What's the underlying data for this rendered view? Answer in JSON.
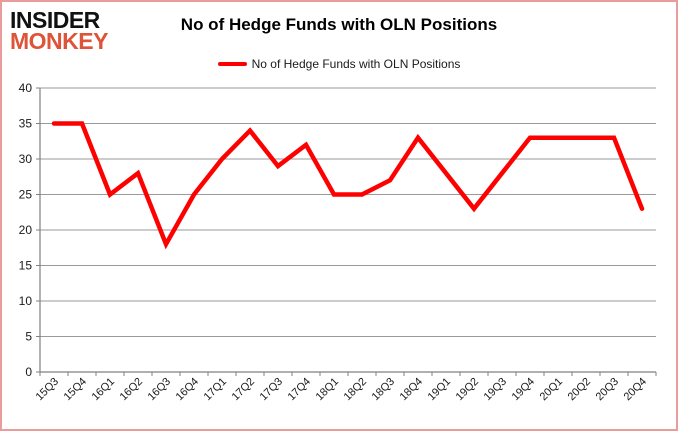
{
  "logo": {
    "line1": "INSIDER",
    "line2": "MONKEY"
  },
  "header": {
    "title": "No of Hedge Funds with OLN Positions"
  },
  "legend": {
    "label": "No of Hedge Funds with OLN Positions"
  },
  "colors": {
    "series": "#ff0000",
    "grid": "#9a9a9a",
    "axis": "#808080",
    "tick_label": "#1a1a1a",
    "frame_border": "#e89c9c",
    "logo_accent": "#dd5438",
    "logo_primary": "#111111"
  },
  "chart_data": {
    "type": "line",
    "title": "No of Hedge Funds with OLN Positions",
    "categories": [
      "15Q3",
      "15Q4",
      "16Q1",
      "16Q2",
      "16Q3",
      "16Q4",
      "17Q1",
      "17Q2",
      "17Q3",
      "17Q4",
      "18Q1",
      "18Q2",
      "18Q3",
      "18Q4",
      "19Q1",
      "19Q2",
      "19Q3",
      "19Q4",
      "20Q1",
      "20Q2",
      "20Q3",
      "20Q4"
    ],
    "series": [
      {
        "name": "No of Hedge Funds with OLN Positions",
        "color": "#ff0000",
        "values": [
          35,
          35,
          25,
          28,
          18,
          25,
          30,
          34,
          29,
          32,
          25,
          25,
          27,
          33,
          28,
          23,
          28,
          33,
          33,
          33,
          33,
          23
        ]
      }
    ],
    "xlabel": "",
    "ylabel": "",
    "ylim": [
      0,
      40
    ],
    "ytick_interval": 5,
    "grid": "horizontal",
    "legend_position": "top"
  }
}
